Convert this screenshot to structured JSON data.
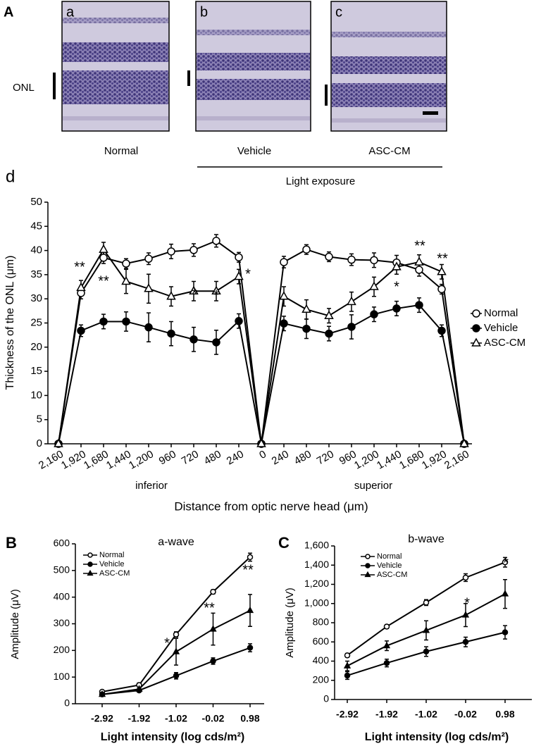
{
  "panel_a": {
    "label": "A",
    "onl_label": "ONL",
    "images": [
      {
        "letter": "a",
        "caption": "Normal"
      },
      {
        "letter": "b",
        "caption": "Vehicle"
      },
      {
        "letter": "c",
        "caption": "ASC-CM"
      }
    ],
    "group_label": "Light exposure"
  },
  "chart_data": [
    {
      "type": "line",
      "panel_label": "d",
      "y_label": "Thickness of the ONL (μm)",
      "x_label": "Distance from optic nerve head (μm)",
      "region_labels": [
        "inferior",
        "superior"
      ],
      "categories": [
        "2,160",
        "1,920",
        "1,680",
        "1,440",
        "1,200",
        "960",
        "720",
        "480",
        "240",
        "0",
        "240",
        "480",
        "720",
        "960",
        "1,200",
        "1,440",
        "1,680",
        "1,920",
        "2,160"
      ],
      "series": [
        {
          "name": "Normal",
          "color": "#000000",
          "marker": "open-circle",
          "values": [
            0,
            31.2,
            38.5,
            37.3,
            38.3,
            39.8,
            40.1,
            42,
            38.6,
            0,
            37.6,
            40.2,
            38.7,
            38.1,
            38,
            37.5,
            36,
            32,
            0
          ],
          "errors": [
            null,
            1.2,
            1.2,
            1,
            1.2,
            1.5,
            1.3,
            1.3,
            1,
            null,
            1.2,
            1,
            1,
            1.2,
            1.5,
            1.5,
            1.3,
            1,
            null
          ]
        },
        {
          "name": "Vehicle",
          "color": "#000000",
          "marker": "filled-circle",
          "values": [
            0,
            23.4,
            25.3,
            25.3,
            24.1,
            22.8,
            21.6,
            21,
            25.4,
            0,
            24.9,
            23.8,
            22.8,
            24.2,
            26.8,
            28,
            28.7,
            23.4,
            0
          ],
          "errors": [
            null,
            1.2,
            1.5,
            2,
            3,
            2.5,
            2.5,
            2.5,
            1.5,
            null,
            1.5,
            2,
            1.5,
            2.5,
            1.5,
            1.5,
            1.5,
            1.2,
            null
          ]
        },
        {
          "name": "ASC-CM",
          "color": "#000000",
          "marker": "open-triangle",
          "values": [
            0,
            32.3,
            40.2,
            33.6,
            32.1,
            30.5,
            31.6,
            31.6,
            34.6,
            0,
            30.5,
            27.8,
            26.5,
            29.4,
            32.5,
            36.6,
            37.6,
            35.6,
            0
          ],
          "errors": [
            null,
            1.5,
            1.5,
            2.5,
            3,
            2,
            2,
            2,
            1.5,
            null,
            2,
            2,
            1.5,
            2,
            2,
            1.5,
            1.5,
            1.5,
            null
          ]
        }
      ],
      "ylim": [
        0,
        50
      ],
      "yticks": [
        0,
        5,
        10,
        15,
        20,
        25,
        30,
        35,
        40,
        45,
        50
      ],
      "legend": "right",
      "annotations": [
        "**",
        "**",
        "*",
        "*",
        "*",
        "*",
        "**",
        "**"
      ]
    },
    {
      "type": "line",
      "panel_label": "B",
      "title": "a-wave",
      "y_label": "Amplitude (μV)",
      "x_label": "Light intensity (log cds/m²)",
      "categories": [
        "-2.92",
        "-1.92",
        "-1.02",
        "-0.02",
        "0.98"
      ],
      "series": [
        {
          "name": "Normal",
          "color": "#000000",
          "marker": "open-circle",
          "values": [
            45,
            70,
            260,
            420,
            550
          ],
          "errors": [
            5,
            8,
            10,
            8,
            15
          ]
        },
        {
          "name": "Vehicle",
          "color": "#000000",
          "marker": "filled-circle",
          "values": [
            35,
            50,
            105,
            160,
            210
          ],
          "errors": [
            4,
            5,
            12,
            12,
            15
          ]
        },
        {
          "name": "ASC-CM",
          "color": "#000000",
          "marker": "filled-triangle",
          "values": [
            35,
            55,
            195,
            280,
            350
          ],
          "errors": [
            5,
            10,
            50,
            60,
            60
          ]
        }
      ],
      "ylim": [
        0,
        600
      ],
      "yticks": [
        0,
        100,
        200,
        300,
        400,
        500,
        600
      ],
      "legend": "upper left",
      "annotations": [
        "*",
        "**",
        "**"
      ]
    },
    {
      "type": "line",
      "panel_label": "C",
      "title": "b-wave",
      "y_label": "Amplitude (μV)",
      "x_label": "Light intensity (log cds/m²)",
      "categories": [
        "-2.92",
        "-1.92",
        "-1.02",
        "-0.02",
        "0.98"
      ],
      "series": [
        {
          "name": "Normal",
          "color": "#000000",
          "marker": "open-circle",
          "values": [
            460,
            760,
            1010,
            1270,
            1430
          ],
          "errors": [
            20,
            20,
            30,
            40,
            50
          ]
        },
        {
          "name": "Vehicle",
          "color": "#000000",
          "marker": "filled-circle",
          "values": [
            250,
            380,
            500,
            600,
            700
          ],
          "errors": [
            40,
            40,
            50,
            50,
            70
          ]
        },
        {
          "name": "ASC-CM",
          "color": "#000000",
          "marker": "filled-triangle",
          "values": [
            350,
            560,
            720,
            880,
            1100
          ],
          "errors": [
            50,
            50,
            100,
            120,
            150
          ]
        }
      ],
      "ylim": [
        0,
        1600
      ],
      "yticks": [
        0,
        200,
        400,
        600,
        800,
        {
          "value": 1000,
          "label": "1,000"
        },
        {
          "value": 1200,
          "label": "1,200"
        },
        {
          "value": 1400,
          "label": "1,400"
        },
        {
          "value": 1600,
          "label": "1,600"
        }
      ],
      "legend": "upper left",
      "annotations": [
        "*",
        "*"
      ]
    }
  ]
}
